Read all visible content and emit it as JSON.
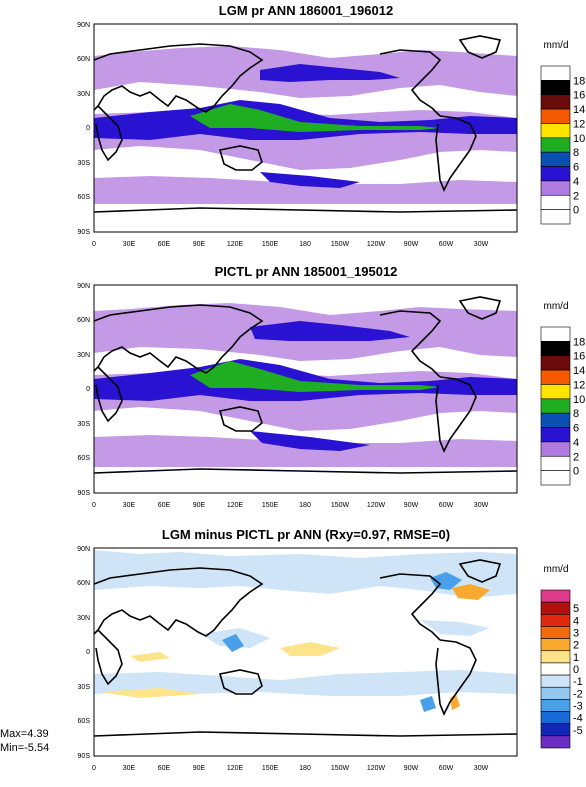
{
  "figure": {
    "stats": {
      "max": "Max=4.39",
      "min": "Min=-5.54"
    }
  },
  "chart_data": [
    {
      "type": "heatmap",
      "title": "LGM pr ANN 186001_196012",
      "units": "mm/d",
      "x_ticks": [
        "0",
        "30E",
        "60E",
        "90E",
        "120E",
        "150E",
        "180",
        "150W",
        "120W",
        "90W",
        "60W",
        "30W"
      ],
      "y_ticks": [
        "90N",
        "60N",
        "30N",
        "0",
        "30S",
        "60S",
        "90S"
      ],
      "colorbar": {
        "labels": [
          "18",
          "16",
          "14",
          "12",
          "10",
          "8",
          "6",
          "4",
          "2",
          "0"
        ],
        "colors": [
          "#ffffff",
          "#000000",
          "#6b0c0c",
          "#f55a00",
          "#ffe400",
          "#1fae22",
          "#0a50b0",
          "#2a12d2",
          "#b07ae0",
          "#ffffff",
          "#ffffff"
        ]
      }
    },
    {
      "type": "heatmap",
      "title": "PICTL pr ANN 185001_195012",
      "units": "mm/d",
      "x_ticks": [
        "0",
        "30E",
        "60E",
        "90E",
        "120E",
        "150E",
        "180",
        "150W",
        "120W",
        "90W",
        "60W",
        "30W"
      ],
      "y_ticks": [
        "90N",
        "60N",
        "30N",
        "0",
        "30S",
        "60S",
        "90S"
      ],
      "colorbar": {
        "labels": [
          "18",
          "16",
          "14",
          "12",
          "10",
          "8",
          "6",
          "4",
          "2",
          "0"
        ],
        "colors": [
          "#ffffff",
          "#000000",
          "#6b0c0c",
          "#f55a00",
          "#ffe400",
          "#1fae22",
          "#0a50b0",
          "#2a12d2",
          "#b07ae0",
          "#ffffff",
          "#ffffff"
        ]
      }
    },
    {
      "type": "heatmap",
      "title": "LGM minus PICTL pr ANN (Rxy=0.97, RMSE=0)",
      "units": "mm/d",
      "x_ticks": [
        "0",
        "30E",
        "60E",
        "90E",
        "120E",
        "150E",
        "180",
        "150W",
        "120W",
        "90W",
        "60W",
        "30W"
      ],
      "y_ticks": [
        "90N",
        "60N",
        "30N",
        "0",
        "30S",
        "60S",
        "90S"
      ],
      "colorbar": {
        "labels": [
          "5",
          "4",
          "3",
          "2",
          "1",
          "0",
          "-1",
          "-2",
          "-3",
          "-4",
          "-5"
        ],
        "colors": [
          "#e03a8a",
          "#b01010",
          "#e02a10",
          "#f26a10",
          "#f9a92e",
          "#fde38a",
          "#ffffff",
          "#cfe5f7",
          "#94c7ef",
          "#49a0e8",
          "#1a6ad8",
          "#1227b8",
          "#6a2cc2"
        ]
      }
    }
  ]
}
